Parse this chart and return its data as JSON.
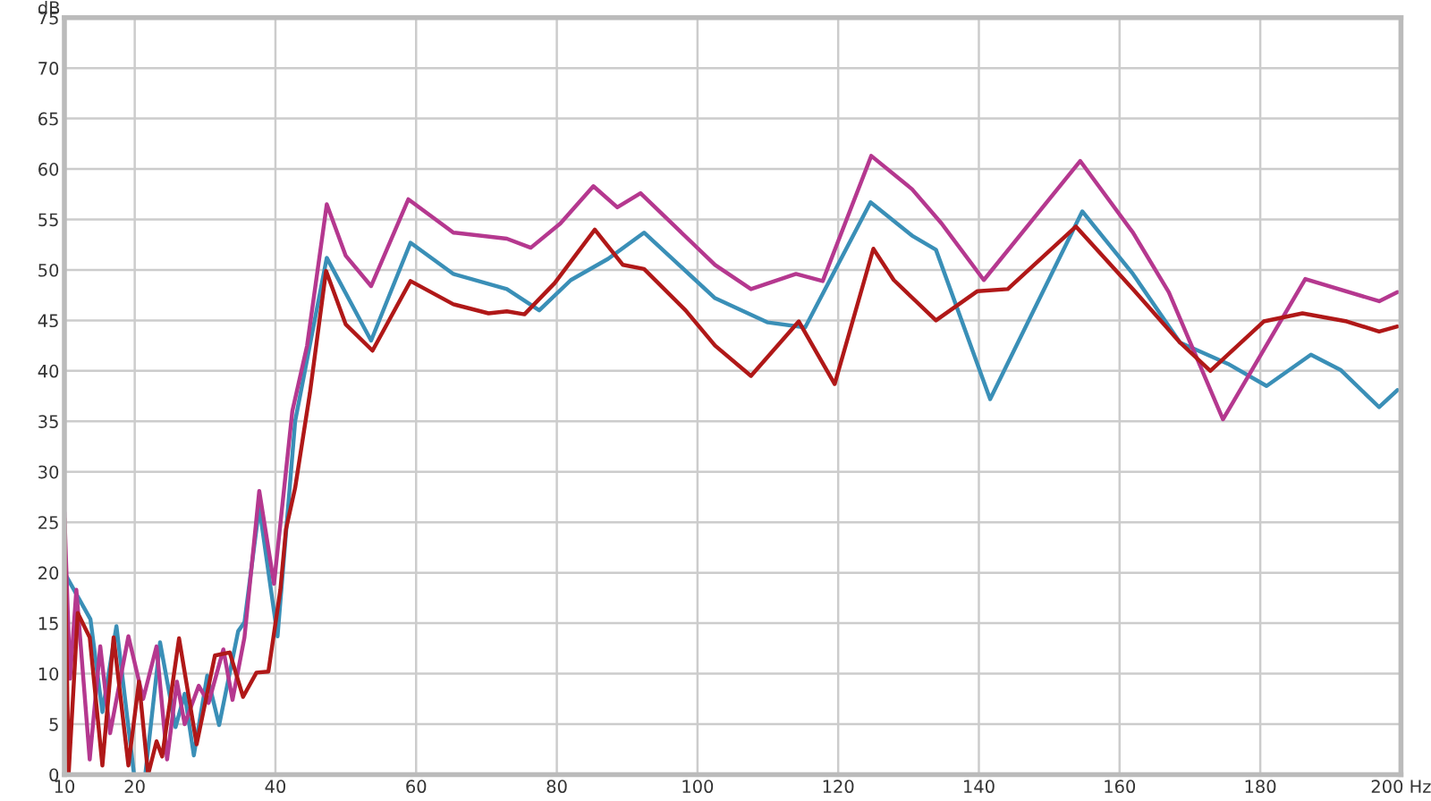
{
  "chart_data": {
    "type": "line",
    "ylabel": "dB",
    "xlim": [
      10,
      200
    ],
    "ylim": [
      0,
      75
    ],
    "xticks": [
      10,
      20,
      40,
      60,
      80,
      100,
      120,
      140,
      160,
      180,
      {
        "value": 200,
        "label": "200 Hz"
      }
    ],
    "yticks": [
      0,
      5,
      10,
      15,
      20,
      25,
      30,
      35,
      40,
      45,
      50,
      55,
      60,
      65,
      70,
      75
    ],
    "grid": true,
    "marker": "none",
    "line_style": "solid",
    "series": [
      {
        "color": "#3a8fb7",
        "x": [
          10,
          10.8,
          13.7,
          15.4,
          17.4,
          19.9,
          21.5,
          23.6,
          25.8,
          27.1,
          28.4,
          30.3,
          32.0,
          34.7,
          35.6,
          37.7,
          40.3,
          42.8,
          47.3,
          53.6,
          59.2,
          65.3,
          72.9,
          77.5,
          82,
          87.3,
          92.4,
          102.5,
          110,
          115.3,
          124.6,
          130.5,
          133.9,
          141.6,
          154.7,
          161.9,
          168.6,
          175.4,
          180.9,
          187.2,
          191.4,
          196.9,
          199.5
        ],
        "values": [
          20,
          null,
          15.4,
          6.2,
          14.7,
          0,
          0,
          13.1,
          4.7,
          8.0,
          1.9,
          9.8,
          4.9,
          14.2,
          15.1,
          26.5,
          13.7,
          35,
          51.2,
          43.0,
          52.7,
          49.6,
          48.1,
          46.0,
          49.0,
          51.1,
          53.7,
          47.2,
          44.8,
          44.3,
          56.7,
          53.4,
          52.0,
          37.2,
          55.8,
          49.6,
          42.8,
          40.7,
          38.5,
          41.6,
          40.1,
          36.4,
          38.1
        ]
      },
      {
        "color": "#b5388f",
        "x": [
          10,
          10.8,
          11.7,
          13.6,
          15.1,
          16.5,
          19.1,
          21.2,
          23.1,
          24.6,
          26.0,
          27.1,
          29.1,
          30.5,
          32.6,
          33.9,
          35.6,
          37.7,
          39.8,
          42.4,
          44.5,
          47.3,
          50.0,
          53.6,
          58.9,
          65.3,
          72.9,
          76.3,
          80.5,
          85.2,
          88.6,
          91.9,
          102.5,
          107.6,
          114.0,
          117.8,
          124.7,
          130.5,
          134.7,
          140.7,
          154.4,
          161.9,
          167.0,
          174.7,
          186.4,
          196.9,
          199.5
        ],
        "values": [
          26.0,
          9.5,
          18.3,
          1.5,
          12.7,
          4.1,
          13.7,
          7.5,
          12.7,
          1.5,
          9.2,
          5.0,
          8.8,
          7.1,
          12.4,
          7.4,
          13.6,
          28.1,
          18.9,
          36,
          42.5,
          56.5,
          51.4,
          48.4,
          57.0,
          53.7,
          53.1,
          52.2,
          54.6,
          58.3,
          56.2,
          57.6,
          50.5,
          48.1,
          49.6,
          48.9,
          61.3,
          58.0,
          54.6,
          49.0,
          60.8,
          53.7,
          47.8,
          35.2,
          49.1,
          46.9,
          47.8
        ]
      },
      {
        "color": "#b01818",
        "x": [
          10,
          10.6,
          11.9,
          13.6,
          15.4,
          17.0,
          19.1,
          20.6,
          21.9,
          23.1,
          23.9,
          26.3,
          28.8,
          31.4,
          33.5,
          35.4,
          37.3,
          39.0,
          40.7,
          41.5,
          42.8,
          44.9,
          47.2,
          50.0,
          53.8,
          59.2,
          65.3,
          70.3,
          72.9,
          75.4,
          79.7,
          85.4,
          89.4,
          92.4,
          98.3,
          102.5,
          107.6,
          114.4,
          119.5,
          125.0,
          127.9,
          133.9,
          139.8,
          144.1,
          153.8,
          161.9,
          168.6,
          172.9,
          180.5,
          186.0,
          192.3,
          196.9,
          199.5
        ],
        "values": [
          25.4,
          0,
          16.0,
          13.6,
          0.9,
          13.6,
          0.9,
          9.2,
          0,
          3.3,
          1.8,
          13.5,
          3.0,
          11.8,
          12.1,
          7.7,
          10.1,
          10.2,
          18.3,
          24.3,
          28.4,
          37.8,
          49.9,
          44.6,
          42.0,
          48.9,
          46.6,
          45.7,
          45.9,
          45.6,
          48.7,
          54.0,
          50.5,
          50.1,
          46.0,
          42.5,
          39.5,
          44.9,
          38.7,
          52.1,
          49.0,
          45.0,
          47.9,
          48.1,
          54.3,
          48.1,
          42.8,
          40.0,
          44.9,
          45.7,
          44.9,
          43.9,
          44.4
        ]
      }
    ]
  }
}
